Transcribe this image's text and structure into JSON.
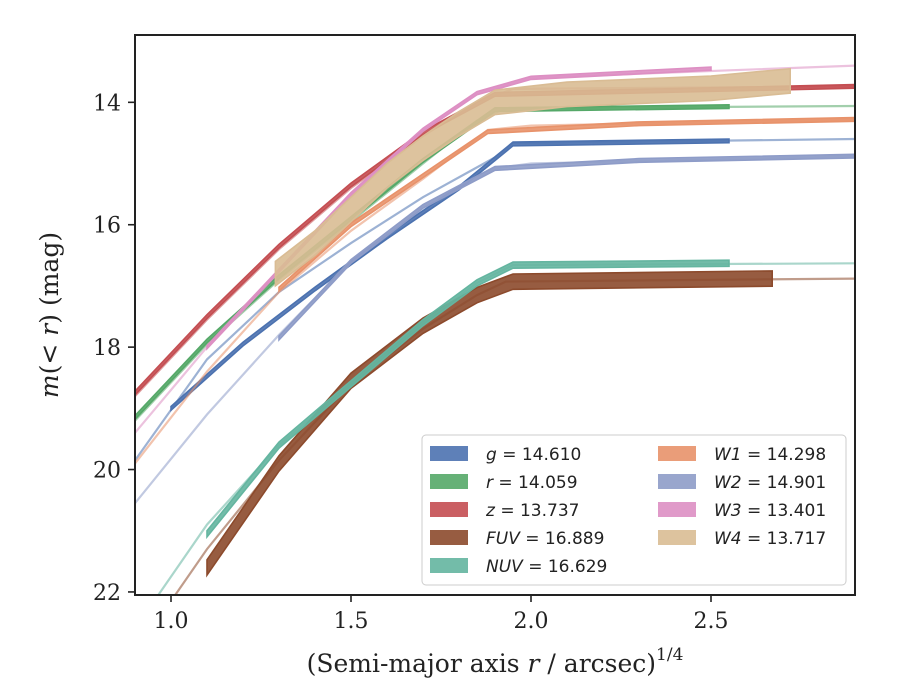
{
  "chart_data": {
    "type": "line",
    "title": "",
    "xlabel": "(Semi-major axis r / arcsec)",
    "xlabel_var": "r",
    "xlabel_pre": "(Semi-major axis ",
    "xlabel_post": " / arcsec)",
    "xlabel_sup": "1/4",
    "ylabel_pre": "m(< r) (mag)",
    "ylabel_var_m": "m",
    "ylabel_lt": "<",
    "ylabel_var_r": "r",
    "ylabel_unit": "(mag)",
    "xlim": [
      0.9,
      2.9
    ],
    "ylim": [
      22.05,
      12.9
    ],
    "y_inverted": true,
    "xticks": [
      "1.0",
      "1.5",
      "2.0",
      "2.5"
    ],
    "xtick_values": [
      1.0,
      1.5,
      2.0,
      2.5
    ],
    "yticks": [
      "14",
      "16",
      "18",
      "20",
      "22"
    ],
    "ytick_values": [
      14,
      16,
      18,
      20,
      22
    ],
    "grid": false,
    "legend_position": "lower-right",
    "series": [
      {
        "name": "g = 14.610",
        "label_var": "g",
        "label_val": "14.610",
        "color": "#4c72b0",
        "fit": [
          [
            0.9,
            19.85
          ],
          [
            1.1,
            18.2
          ],
          [
            1.3,
            17.1
          ],
          [
            1.5,
            16.3
          ],
          [
            1.7,
            15.55
          ],
          [
            1.9,
            14.9
          ],
          [
            1.95,
            14.67
          ],
          [
            2.9,
            14.6
          ]
        ],
        "band": [
          [
            1.0,
            19.0
          ],
          [
            1.2,
            17.95
          ],
          [
            1.4,
            17.05
          ],
          [
            1.6,
            16.2
          ],
          [
            1.8,
            15.4
          ],
          [
            1.95,
            14.68
          ],
          [
            2.55,
            14.63
          ]
        ],
        "band_width": 0.06
      },
      {
        "name": "r = 14.059",
        "label_var": "r",
        "label_val": "14.059",
        "color": "#55a868",
        "fit": [
          [
            0.9,
            19.2
          ],
          [
            1.1,
            17.95
          ],
          [
            1.3,
            16.9
          ],
          [
            1.5,
            15.95
          ],
          [
            1.7,
            15.0
          ],
          [
            1.85,
            14.3
          ],
          [
            1.93,
            14.1
          ],
          [
            2.9,
            14.06
          ]
        ],
        "band": [
          [
            0.9,
            19.15
          ],
          [
            1.1,
            17.9
          ],
          [
            1.3,
            16.85
          ],
          [
            1.5,
            15.9
          ],
          [
            1.7,
            14.95
          ],
          [
            1.9,
            14.12
          ],
          [
            2.55,
            14.07
          ]
        ],
        "band_width": 0.06
      },
      {
        "name": "z = 13.737",
        "label_var": "z",
        "label_val": "13.737",
        "color": "#c44e52",
        "fit": [
          [
            0.9,
            18.8
          ],
          [
            1.1,
            17.55
          ],
          [
            1.3,
            16.4
          ],
          [
            1.5,
            15.4
          ],
          [
            1.7,
            14.55
          ],
          [
            1.85,
            14.0
          ],
          [
            1.95,
            13.78
          ],
          [
            2.9,
            13.74
          ]
        ],
        "band": [
          [
            0.9,
            18.75
          ],
          [
            1.1,
            17.5
          ],
          [
            1.3,
            16.35
          ],
          [
            1.5,
            15.35
          ],
          [
            1.7,
            14.5
          ],
          [
            1.9,
            13.87
          ],
          [
            2.9,
            13.74
          ]
        ],
        "band_width": 0.06
      },
      {
        "name": "FUV = 16.889",
        "label_var": "FUV",
        "label_val": "16.889",
        "color": "#8c4a2c",
        "fit": [
          [
            0.9,
            23.0
          ],
          [
            1.1,
            21.3
          ],
          [
            1.3,
            19.85
          ],
          [
            1.5,
            18.6
          ],
          [
            1.7,
            17.7
          ],
          [
            1.85,
            17.15
          ],
          [
            1.93,
            16.93
          ],
          [
            2.9,
            16.88
          ]
        ],
        "band": [
          [
            1.1,
            21.6
          ],
          [
            1.3,
            19.9
          ],
          [
            1.5,
            18.55
          ],
          [
            1.7,
            17.65
          ],
          [
            1.85,
            17.15
          ],
          [
            1.95,
            16.93
          ],
          [
            2.67,
            16.88
          ]
        ],
        "band_width": 0.25
      },
      {
        "name": "NUV = 16.629",
        "label_var": "NUV",
        "label_val": "16.629",
        "color": "#64b5a0",
        "fit": [
          [
            0.9,
            22.6
          ],
          [
            1.1,
            20.9
          ],
          [
            1.3,
            19.6
          ],
          [
            1.5,
            18.6
          ],
          [
            1.7,
            17.6
          ],
          [
            1.85,
            16.95
          ],
          [
            1.95,
            16.66
          ],
          [
            2.9,
            16.63
          ]
        ],
        "band": [
          [
            1.1,
            21.05
          ],
          [
            1.3,
            19.6
          ],
          [
            1.5,
            18.6
          ],
          [
            1.7,
            17.6
          ],
          [
            1.85,
            16.95
          ],
          [
            1.95,
            16.66
          ],
          [
            2.55,
            16.63
          ]
        ],
        "band_width": 0.1
      },
      {
        "name": "W1 = 14.298",
        "label_var": "W1",
        "label_val": "14.298",
        "color": "#e8926a",
        "fit": [
          [
            0.9,
            19.9
          ],
          [
            1.1,
            18.4
          ],
          [
            1.3,
            17.1
          ],
          [
            1.5,
            16.1
          ],
          [
            1.7,
            15.25
          ],
          [
            1.88,
            14.45
          ],
          [
            2.0,
            14.38
          ],
          [
            2.9,
            14.28
          ]
        ],
        "band": [
          [
            1.3,
            17.05
          ],
          [
            1.5,
            16.0
          ],
          [
            1.7,
            15.2
          ],
          [
            1.88,
            14.48
          ],
          [
            2.3,
            14.35
          ],
          [
            2.9,
            14.28
          ]
        ],
        "band_width": 0.06
      },
      {
        "name": "W2 = 14.901",
        "label_var": "W2",
        "label_val": "14.901",
        "color": "#8e9cc8",
        "fit": [
          [
            0.9,
            20.55
          ],
          [
            1.1,
            19.1
          ],
          [
            1.3,
            17.8
          ],
          [
            1.5,
            16.6
          ],
          [
            1.7,
            15.7
          ],
          [
            1.9,
            15.08
          ],
          [
            2.0,
            15.0
          ],
          [
            2.9,
            14.88
          ]
        ],
        "band": [
          [
            1.3,
            17.85
          ],
          [
            1.5,
            16.6
          ],
          [
            1.7,
            15.7
          ],
          [
            1.9,
            15.08
          ],
          [
            2.3,
            14.95
          ],
          [
            2.9,
            14.88
          ]
        ],
        "band_width": 0.06
      },
      {
        "name": "W3 = 13.401",
        "label_var": "W3",
        "label_val": "13.401",
        "color": "#dd8fc3",
        "fit": [
          [
            0.9,
            19.4
          ],
          [
            1.1,
            18.0
          ],
          [
            1.3,
            16.75
          ],
          [
            1.5,
            15.5
          ],
          [
            1.7,
            14.45
          ],
          [
            1.85,
            13.85
          ],
          [
            2.0,
            13.6
          ],
          [
            2.9,
            13.4
          ]
        ],
        "band": [
          [
            1.1,
            18.0
          ],
          [
            1.3,
            16.75
          ],
          [
            1.5,
            15.5
          ],
          [
            1.7,
            14.45
          ],
          [
            1.85,
            13.85
          ],
          [
            2.0,
            13.6
          ],
          [
            2.5,
            13.45
          ]
        ],
        "band_width": 0.05
      },
      {
        "name": "W4 = 13.717",
        "label_var": "W4",
        "label_val": "13.717",
        "color": "#d9bc94",
        "fit": [],
        "band": [
          [
            1.29,
            16.8
          ],
          [
            1.4,
            16.3
          ],
          [
            1.5,
            15.75
          ],
          [
            1.6,
            15.2
          ],
          [
            1.7,
            14.75
          ],
          [
            1.8,
            14.35
          ],
          [
            1.9,
            14.0
          ],
          [
            2.1,
            13.87
          ],
          [
            2.5,
            13.77
          ],
          [
            2.72,
            13.65
          ]
        ],
        "band_width": 0.4
      }
    ]
  }
}
